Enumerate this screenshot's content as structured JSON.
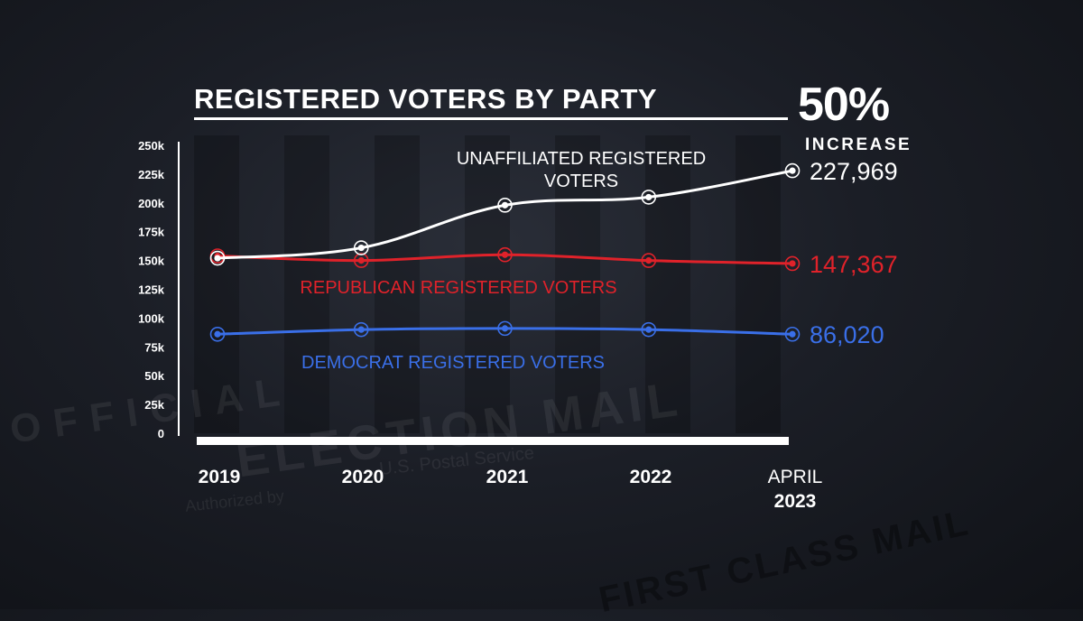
{
  "header": {
    "title": "REGISTERED VOTERS BY PARTY",
    "increase_value": "50%",
    "increase_label": "INCREASE"
  },
  "background": {
    "envelope_text_1": "OFFICIAL",
    "envelope_text_2": "ELECTION MAIL",
    "envelope_text_3": "U.S. Postal Service",
    "envelope_text_4": "FIRST CLASS MAIL",
    "envelope_text_5": "Authorized by"
  },
  "x_axis": {
    "labels": [
      {
        "top": "",
        "bottom": "2019"
      },
      {
        "top": "",
        "bottom": "2020"
      },
      {
        "top": "",
        "bottom": "2021"
      },
      {
        "top": "",
        "bottom": "2022"
      },
      {
        "top": "APRIL",
        "bottom": "2023"
      }
    ]
  },
  "colors": {
    "unaffiliated": "#ffffff",
    "republican": "#e0222a",
    "democrat": "#3a6fe8",
    "axis": "#ffffff"
  },
  "chart_data": {
    "type": "line",
    "title": "REGISTERED VOTERS BY PARTY",
    "categories": [
      "2019",
      "2020",
      "2021",
      "2022",
      "APRIL 2023"
    ],
    "ylim": [
      0,
      250000
    ],
    "yticks": [
      0,
      25000,
      50000,
      75000,
      100000,
      125000,
      150000,
      175000,
      200000,
      225000,
      250000
    ],
    "ytick_labels": [
      "0",
      "25k",
      "50k",
      "75k",
      "100k",
      "125k",
      "150k",
      "175k",
      "200k",
      "225k",
      "250k"
    ],
    "series": [
      {
        "name": "UNAFFILIATED REGISTERED VOTERS",
        "label_lines": [
          "UNAFFILIATED REGISTERED",
          "VOTERS"
        ],
        "color_key": "unaffiliated",
        "values": [
          152000,
          161000,
          198000,
          205000,
          227969
        ],
        "end_label": "227,969"
      },
      {
        "name": "REPUBLICAN REGISTERED VOTERS",
        "label_lines": [
          "REPUBLICAN REGISTERED VOTERS"
        ],
        "color_key": "republican",
        "values": [
          154000,
          150000,
          155000,
          150000,
          147367
        ],
        "end_label": "147,367"
      },
      {
        "name": "DEMOCRAT REGISTERED VOTERS",
        "label_lines": [
          "DEMOCRAT REGISTERED VOTERS"
        ],
        "color_key": "democrat",
        "values": [
          86000,
          90000,
          91000,
          90000,
          86020
        ],
        "end_label": "86,020"
      }
    ]
  }
}
